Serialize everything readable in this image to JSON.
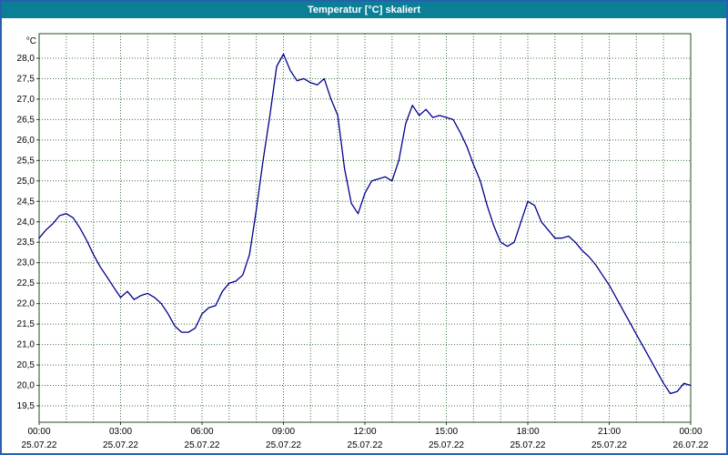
{
  "window": {
    "title": "Temperatur [°C] skaliert"
  },
  "colors": {
    "titlebar_bg": "#0a7f96",
    "titlebar_text": "#ffffff",
    "window_border": "#2a5fb0",
    "plot_bg": "#ffffff",
    "grid": "#3c6e3c",
    "plot_border": "#234d23",
    "series_line": "#00008b",
    "label_text": "#000000"
  },
  "chart_data": {
    "type": "line",
    "title": "Temperatur [°C] skaliert",
    "ylabel": "°C",
    "xlabel": "",
    "grid": "dotted, hourly vertical and 0.5°C horizontal",
    "legend_position": "none",
    "ylim": [
      19.5,
      28.0
    ],
    "y_draw_range": [
      19.1,
      28.6
    ],
    "x_range_hours": [
      0,
      24
    ],
    "y_tick_values": [
      28.0,
      27.5,
      27.0,
      26.5,
      26.0,
      25.5,
      25.0,
      24.5,
      24.0,
      23.5,
      23.0,
      22.5,
      22.0,
      21.5,
      21.0,
      20.5,
      20.0,
      19.5
    ],
    "y_tick_labels": [
      "28,0",
      "27,5",
      "27,0",
      "26,5",
      "26,0",
      "25,5",
      "25,0",
      "24,5",
      "24,0",
      "23,5",
      "23,0",
      "22,5",
      "22,0",
      "21,5",
      "21,0",
      "20,5",
      "20,0",
      "19,5"
    ],
    "x_tick_hours": [
      0,
      3,
      6,
      9,
      12,
      15,
      18,
      21,
      24
    ],
    "x_tick_labels": [
      "00:00",
      "03:00",
      "06:00",
      "09:00",
      "12:00",
      "15:00",
      "18:00",
      "21:00",
      "00:00"
    ],
    "x_date_labels": [
      "25.07.22",
      "25.07.22",
      "25.07.22",
      "25.07.22",
      "25.07.22",
      "25.07.22",
      "25.07.22",
      "25.07.22",
      "26.07.22"
    ],
    "series": [
      {
        "name": "Temperatur",
        "color": "#00008b",
        "step_hours": 0.25,
        "start_hour": 0,
        "values": [
          23.6,
          23.8,
          23.95,
          24.15,
          24.2,
          24.1,
          23.85,
          23.55,
          23.2,
          22.9,
          22.65,
          22.4,
          22.15,
          22.3,
          22.1,
          22.2,
          22.25,
          22.15,
          22.0,
          21.75,
          21.45,
          21.3,
          21.3,
          21.4,
          21.75,
          21.9,
          21.95,
          22.3,
          22.5,
          22.55,
          22.7,
          23.2,
          24.3,
          25.5,
          26.6,
          27.8,
          28.1,
          27.7,
          27.45,
          27.5,
          27.4,
          27.35,
          27.5,
          27.0,
          26.6,
          25.3,
          24.45,
          24.2,
          24.7,
          25.0,
          25.05,
          25.1,
          25.0,
          25.5,
          26.4,
          26.85,
          26.6,
          26.75,
          26.55,
          26.6,
          26.55,
          26.5,
          26.2,
          25.85,
          25.4,
          25.0,
          24.4,
          23.9,
          23.5,
          23.4,
          23.5,
          24.0,
          24.5,
          24.4,
          24.0,
          23.8,
          23.6,
          23.6,
          23.65,
          23.5,
          23.3,
          23.15,
          22.95,
          22.7,
          22.45,
          22.15,
          21.85,
          21.55,
          21.25,
          20.95,
          20.65,
          20.35,
          20.05,
          19.8,
          19.85,
          20.05,
          20.0
        ]
      }
    ]
  }
}
